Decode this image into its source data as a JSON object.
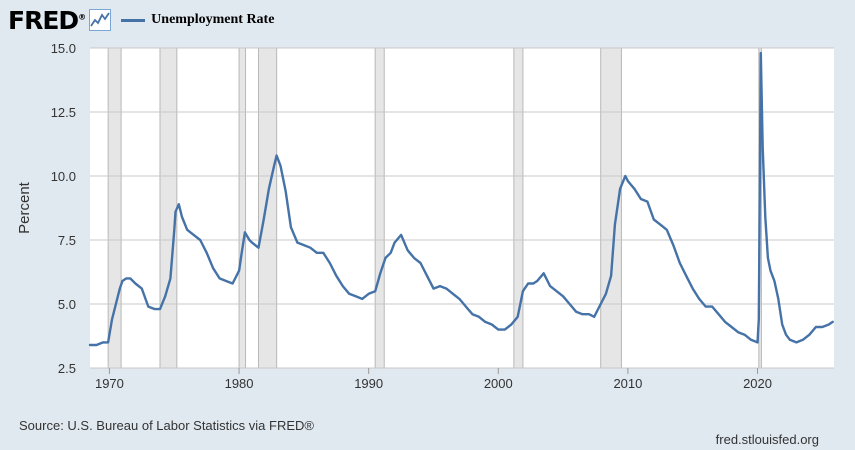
{
  "header": {
    "logo_text": "FRED",
    "logo_reg": "®",
    "series_label": "Unemployment Rate"
  },
  "footer": {
    "source": "Source: U.S. Bureau of Labor Statistics via FRED®",
    "site": "fred.stlouisfed.org"
  },
  "colors": {
    "line": "#4572a7",
    "recession": "#e6e6e6",
    "plot_bg": "#ffffff",
    "page_bg": "#e1e9f0",
    "grid": "#c8c8c8"
  },
  "chart_data": {
    "type": "line",
    "title": "",
    "xlabel": "",
    "ylabel": "Percent",
    "xlim": [
      1968.5,
      2025.9
    ],
    "ylim": [
      2.5,
      15.0
    ],
    "grid": "horizontal",
    "legend": "top-left",
    "x_ticks": [
      1970,
      1980,
      1990,
      2000,
      2010,
      2020
    ],
    "x_tick_labels": [
      "1970",
      "1980",
      "1990",
      "2000",
      "2010",
      "2020"
    ],
    "y_ticks": [
      2.5,
      5.0,
      7.5,
      10.0,
      12.5,
      15.0
    ],
    "y_tick_labels": [
      "2.5",
      "5.0",
      "7.5",
      "10.0",
      "12.5",
      "15.0"
    ],
    "recessions": [
      [
        1969.9,
        1970.9
      ],
      [
        1973.9,
        1975.2
      ],
      [
        1980.0,
        1980.5
      ],
      [
        1981.5,
        1982.9
      ],
      [
        1990.5,
        1991.2
      ],
      [
        2001.2,
        2001.9
      ],
      [
        2007.9,
        2009.5
      ],
      [
        2020.1,
        2020.3
      ]
    ],
    "series": [
      {
        "name": "Unemployment Rate",
        "x": [
          1968.5,
          1969.0,
          1969.5,
          1969.9,
          1970.2,
          1970.5,
          1970.8,
          1971.0,
          1971.3,
          1971.6,
          1972.0,
          1972.5,
          1973.0,
          1973.5,
          1973.9,
          1974.3,
          1974.7,
          1975.0,
          1975.1,
          1975.35,
          1975.6,
          1976.0,
          1976.5,
          1977.0,
          1977.5,
          1978.0,
          1978.5,
          1979.0,
          1979.5,
          1980.0,
          1980.2,
          1980.45,
          1980.8,
          1981.0,
          1981.5,
          1981.9,
          1982.3,
          1982.7,
          1982.9,
          1983.2,
          1983.6,
          1984.0,
          1984.5,
          1985.0,
          1985.5,
          1986.0,
          1986.5,
          1987.0,
          1987.5,
          1988.0,
          1988.5,
          1989.0,
          1989.5,
          1990.0,
          1990.5,
          1990.9,
          1991.3,
          1991.7,
          1992.0,
          1992.5,
          1993.0,
          1993.5,
          1994.0,
          1994.5,
          1995.0,
          1995.5,
          1996.0,
          1996.5,
          1997.0,
          1997.5,
          1998.0,
          1998.5,
          1999.0,
          1999.5,
          2000.0,
          2000.5,
          2001.0,
          2001.5,
          2001.9,
          2002.3,
          2002.7,
          2003.0,
          2003.5,
          2004.0,
          2004.5,
          2005.0,
          2005.5,
          2006.0,
          2006.5,
          2007.0,
          2007.4,
          2007.9,
          2008.3,
          2008.7,
          2009.0,
          2009.4,
          2009.8,
          2010.0,
          2010.5,
          2011.0,
          2011.5,
          2012.0,
          2012.5,
          2013.0,
          2013.5,
          2014.0,
          2014.5,
          2015.0,
          2015.5,
          2016.0,
          2016.5,
          2017.0,
          2017.5,
          2018.0,
          2018.5,
          2019.0,
          2019.5,
          2020.0,
          2020.1,
          2020.25,
          2020.4,
          2020.6,
          2020.8,
          2021.0,
          2021.3,
          2021.6,
          2021.9,
          2022.2,
          2022.5,
          2023.0,
          2023.5,
          2024.0,
          2024.5,
          2025.0,
          2025.5,
          2025.8
        ],
        "values": [
          3.4,
          3.4,
          3.5,
          3.5,
          4.4,
          5.0,
          5.6,
          5.9,
          6.0,
          6.0,
          5.8,
          5.6,
          4.9,
          4.8,
          4.8,
          5.3,
          6.0,
          7.9,
          8.6,
          8.9,
          8.4,
          7.9,
          7.7,
          7.5,
          7.0,
          6.4,
          6.0,
          5.9,
          5.8,
          6.3,
          7.0,
          7.8,
          7.5,
          7.4,
          7.2,
          8.3,
          9.5,
          10.4,
          10.8,
          10.4,
          9.4,
          8.0,
          7.4,
          7.3,
          7.2,
          7.0,
          7.0,
          6.6,
          6.1,
          5.7,
          5.4,
          5.3,
          5.2,
          5.4,
          5.5,
          6.2,
          6.8,
          7.0,
          7.4,
          7.7,
          7.1,
          6.8,
          6.6,
          6.1,
          5.6,
          5.7,
          5.6,
          5.4,
          5.2,
          4.9,
          4.6,
          4.5,
          4.3,
          4.2,
          4.0,
          4.0,
          4.2,
          4.5,
          5.5,
          5.8,
          5.8,
          5.9,
          6.2,
          5.7,
          5.5,
          5.3,
          5.0,
          4.7,
          4.6,
          4.6,
          4.5,
          5.0,
          5.4,
          6.1,
          8.1,
          9.5,
          10.0,
          9.8,
          9.5,
          9.1,
          9.0,
          8.3,
          8.1,
          7.9,
          7.3,
          6.6,
          6.1,
          5.6,
          5.2,
          4.9,
          4.9,
          4.6,
          4.3,
          4.1,
          3.9,
          3.8,
          3.6,
          3.5,
          4.4,
          14.8,
          11.1,
          8.4,
          6.8,
          6.3,
          5.9,
          5.2,
          4.2,
          3.8,
          3.6,
          3.5,
          3.6,
          3.8,
          4.1,
          4.1,
          4.2,
          4.3
        ]
      }
    ]
  }
}
